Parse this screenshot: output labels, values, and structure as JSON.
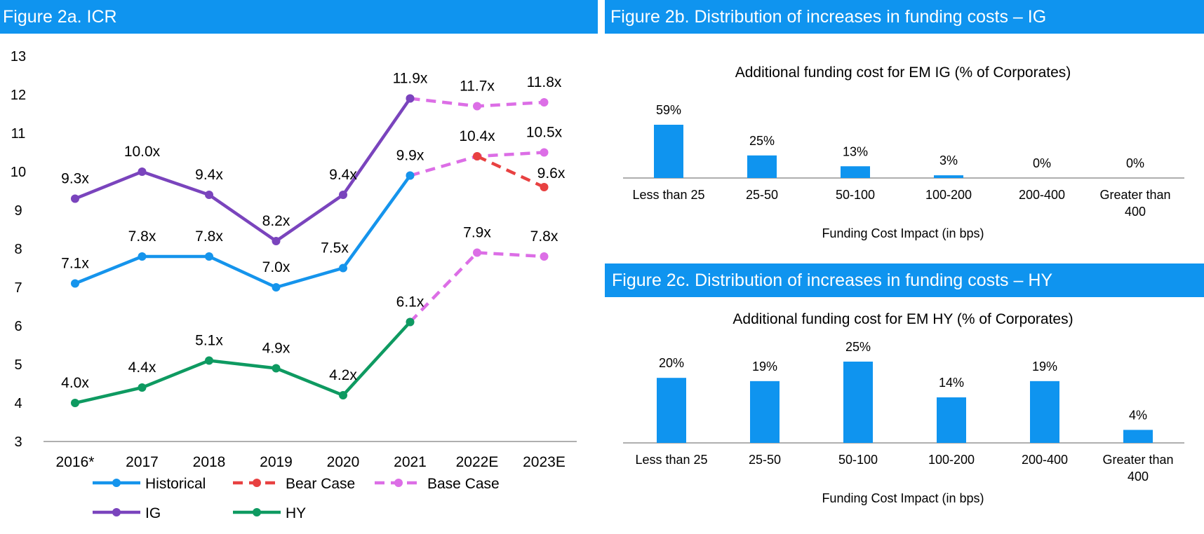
{
  "headers": {
    "a": "Figure 2a.  ICR",
    "b": "Figure 2b. Distribution of increases in funding costs – IG",
    "c": "Figure 2c. Distribution of increases in funding costs – HY"
  },
  "colors": {
    "header_bg": "#0f94ef",
    "historical": "#1594ec",
    "bear": "#e84141",
    "base": "#dc6ee6",
    "ig": "#7a44bd",
    "hy": "#0e9a61",
    "bar": "#0f94ef"
  },
  "chart_data": [
    {
      "type": "line",
      "categories": [
        "2016*",
        "2017",
        "2018",
        "2019",
        "2020",
        "2021",
        "2022E",
        "2023E"
      ],
      "ylim": [
        3,
        13
      ],
      "yticks": [
        "3",
        "4",
        "5",
        "6",
        "7",
        "8",
        "9",
        "10",
        "11",
        "12",
        "13"
      ],
      "legend": [
        "Historical",
        "Bear Case",
        "Base Case",
        "IG",
        "HY"
      ],
      "legend_position": "bottom",
      "grid": false,
      "series": [
        {
          "name": "IG",
          "color_key": "ig",
          "style": "solid",
          "values": [
            9.3,
            10.0,
            9.4,
            8.2,
            9.4,
            11.9,
            null,
            null
          ],
          "labels": [
            "9.3x",
            "10.0x",
            "9.4x",
            "8.2x",
            "9.4x",
            "11.9x",
            null,
            null
          ]
        },
        {
          "name": "Historical",
          "color_key": "historical",
          "style": "solid",
          "values": [
            7.1,
            7.8,
            7.8,
            7.0,
            7.5,
            9.9,
            null,
            null
          ],
          "labels": [
            "7.1x",
            "7.8x",
            "7.8x",
            "7.0x",
            "7.5x",
            "9.9x",
            null,
            null
          ]
        },
        {
          "name": "HY",
          "color_key": "hy",
          "style": "solid",
          "values": [
            4.0,
            4.4,
            5.1,
            4.9,
            4.2,
            6.1,
            null,
            null
          ],
          "labels": [
            "4.0x",
            "4.4x",
            "5.1x",
            "4.9x",
            "4.2x",
            "6.1x",
            null,
            null
          ]
        },
        {
          "name": "Base Case",
          "color_key": "base",
          "style": "dashed",
          "values": [
            null,
            null,
            null,
            null,
            null,
            11.9,
            11.7,
            11.8
          ],
          "labels": [
            null,
            null,
            null,
            null,
            null,
            null,
            "11.7x",
            "11.8x"
          ]
        },
        {
          "name": "Base Case",
          "color_key": "base",
          "style": "dashed",
          "values": [
            null,
            null,
            null,
            null,
            null,
            9.9,
            10.4,
            10.5
          ],
          "labels": [
            null,
            null,
            null,
            null,
            null,
            null,
            "10.4x",
            "10.5x"
          ]
        },
        {
          "name": "Base Case",
          "color_key": "base",
          "style": "dashed",
          "values": [
            null,
            null,
            null,
            null,
            null,
            6.1,
            7.9,
            7.8
          ],
          "labels": [
            null,
            null,
            null,
            null,
            null,
            null,
            "7.9x",
            "7.8x"
          ]
        },
        {
          "name": "Bear Case",
          "color_key": "bear",
          "style": "dashed",
          "values": [
            null,
            null,
            null,
            null,
            null,
            null,
            10.4,
            9.6
          ],
          "labels": [
            null,
            null,
            null,
            null,
            null,
            null,
            null,
            "9.6x"
          ]
        }
      ]
    },
    {
      "type": "bar",
      "title": "Additional funding cost for EM IG  (% of Corporates)",
      "xlabel": "Funding Cost Impact (in bps)",
      "categories": [
        "Less than 25",
        "25-50",
        "50-100",
        "100-200",
        "200-400",
        "Greater than 400"
      ],
      "category_lines": [
        [
          "Less than 25"
        ],
        [
          "25-50"
        ],
        [
          "50-100"
        ],
        [
          "100-200"
        ],
        [
          "200-400"
        ],
        [
          "Greater than",
          "400"
        ]
      ],
      "values": [
        59,
        25,
        13,
        3,
        0,
        0
      ],
      "labels": [
        "59%",
        "25%",
        "13%",
        "3%",
        "0%",
        "0%"
      ],
      "ylim": [
        0,
        70
      ]
    },
    {
      "type": "bar",
      "title": "Additional funding cost for EM HY  (% of Corporates)",
      "xlabel": "Funding Cost Impact (in bps)",
      "categories": [
        "Less than 25",
        "25-50",
        "50-100",
        "100-200",
        "200-400",
        "Greater than 400"
      ],
      "category_lines": [
        [
          "Less than 25"
        ],
        [
          "25-50"
        ],
        [
          "50-100"
        ],
        [
          "100-200"
        ],
        [
          "200-400"
        ],
        [
          "Greater than",
          "400"
        ]
      ],
      "values": [
        20,
        19,
        25,
        14,
        19,
        4
      ],
      "labels": [
        "20%",
        "19%",
        "25%",
        "14%",
        "19%",
        "4%"
      ],
      "ylim": [
        0,
        30
      ]
    }
  ]
}
